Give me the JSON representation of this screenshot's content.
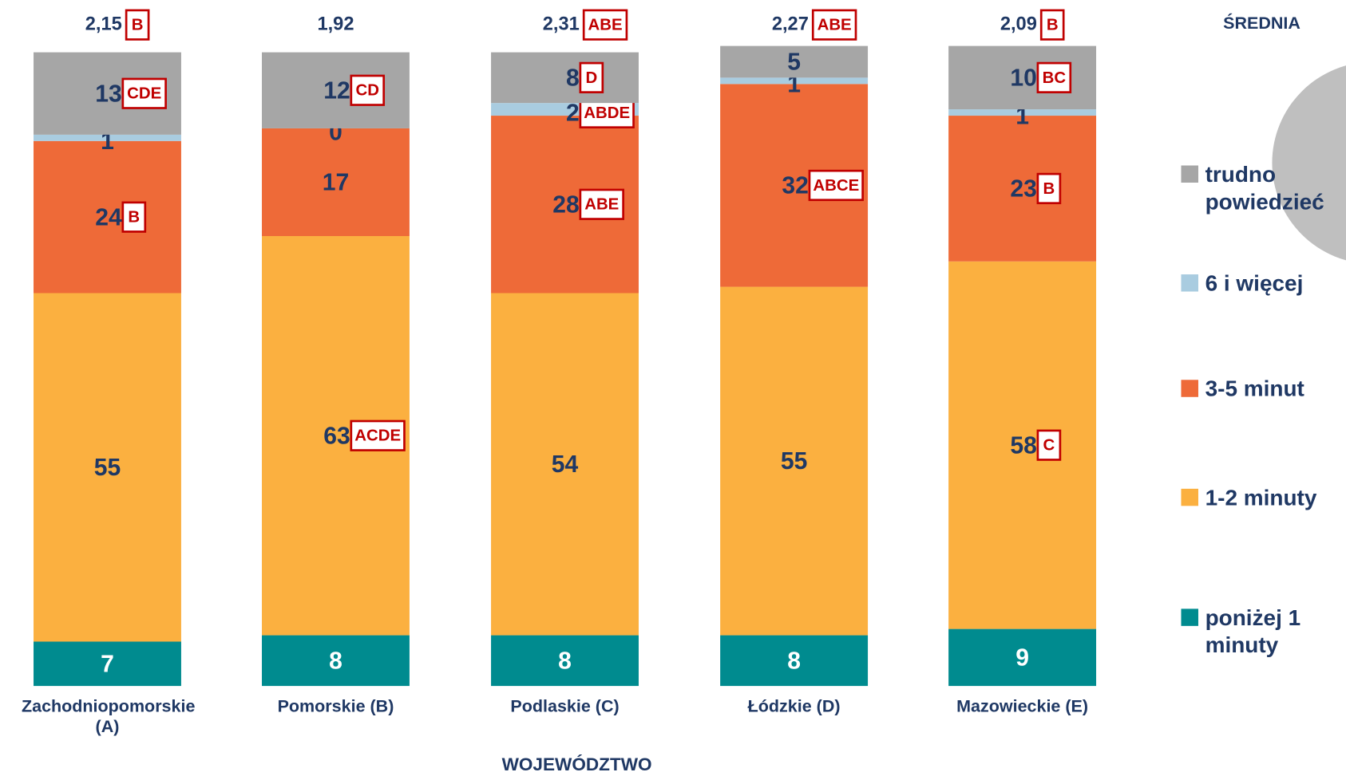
{
  "chart_data": {
    "type": "stacked_bar",
    "categories": [
      "Zachodniopomorskie (A)",
      "Pomorskie (B)",
      "Podlaskie (C)",
      "Łódzkie (D)",
      "Mazowieckie (E)"
    ],
    "xlabel": "WOJEWÓDZTWO",
    "ylim": [
      0,
      100
    ],
    "series": [
      {
        "name": "poniżej 1 minuty",
        "color": "#008B8F",
        "values": [
          7,
          8,
          8,
          8,
          9
        ],
        "badges": [
          null,
          null,
          null,
          null,
          null
        ]
      },
      {
        "name": "1-2 minuty",
        "color": "#FBB040",
        "values": [
          55,
          63,
          54,
          55,
          58
        ],
        "badges": [
          null,
          "ACDE",
          null,
          null,
          "C"
        ]
      },
      {
        "name": "3-5 minut",
        "color": "#EE6A38",
        "values": [
          24,
          17,
          28,
          32,
          23
        ],
        "badges": [
          "B",
          null,
          "ABE",
          "ABCE",
          "B"
        ]
      },
      {
        "name": "6 i więcej",
        "color": "#A9CCE0",
        "values": [
          1,
          0,
          2,
          1,
          1
        ],
        "badges": [
          null,
          null,
          "ABDE",
          null,
          null
        ]
      },
      {
        "name": "trudno powiedzieć",
        "color": "#A6A6A6",
        "values": [
          13,
          12,
          8,
          5,
          10
        ],
        "badges": [
          "CDE",
          "CD",
          "D",
          null,
          "BC"
        ]
      }
    ],
    "mean_title": "ŚREDNIA",
    "means": [
      2.15,
      1.92,
      2.31,
      2.27,
      2.09
    ],
    "mean_labels": [
      "2,15",
      "1,92",
      "2,31",
      "2,27",
      "2,09"
    ],
    "mean_badges": [
      "B",
      null,
      "ABE",
      "ABE",
      "B"
    ]
  }
}
